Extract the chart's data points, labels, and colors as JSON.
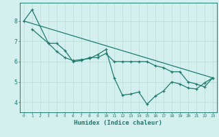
{
  "title": "",
  "xlabel": "Humidex (Indice chaleur)",
  "bg_color": "#d4f0ee",
  "line_color": "#1a7a6e",
  "grid_color": "#b8dbd8",
  "xlim": [
    -0.5,
    23.5
  ],
  "ylim": [
    3.5,
    8.9
  ],
  "yticks": [
    4,
    5,
    6,
    7,
    8
  ],
  "xticks": [
    0,
    1,
    2,
    3,
    4,
    5,
    6,
    7,
    8,
    9,
    10,
    11,
    12,
    13,
    14,
    15,
    16,
    17,
    18,
    19,
    20,
    21,
    22,
    23
  ],
  "line1_x": [
    0,
    1,
    3,
    4,
    5,
    6,
    7,
    8,
    9,
    10,
    11,
    12,
    13,
    14,
    15,
    16,
    17,
    18,
    19,
    20,
    21,
    22,
    23
  ],
  "line1_y": [
    8.0,
    8.55,
    6.9,
    6.9,
    6.55,
    6.0,
    6.05,
    6.2,
    6.2,
    6.4,
    6.0,
    6.0,
    6.0,
    6.0,
    6.0,
    5.8,
    5.7,
    5.5,
    5.5,
    5.0,
    4.9,
    4.75,
    5.2
  ],
  "line2_x": [
    1,
    3,
    4,
    5,
    6,
    7,
    8,
    9,
    10,
    11,
    12,
    13,
    14,
    15,
    16,
    17,
    18,
    19,
    20,
    21,
    22,
    23
  ],
  "line2_y": [
    7.6,
    6.9,
    6.5,
    6.2,
    6.05,
    6.1,
    6.15,
    6.35,
    6.6,
    5.2,
    4.35,
    4.4,
    4.5,
    3.9,
    4.3,
    4.55,
    5.0,
    4.9,
    4.7,
    4.65,
    4.95,
    5.2
  ],
  "line3_x": [
    0,
    23
  ],
  "line3_y": [
    8.0,
    5.2
  ]
}
